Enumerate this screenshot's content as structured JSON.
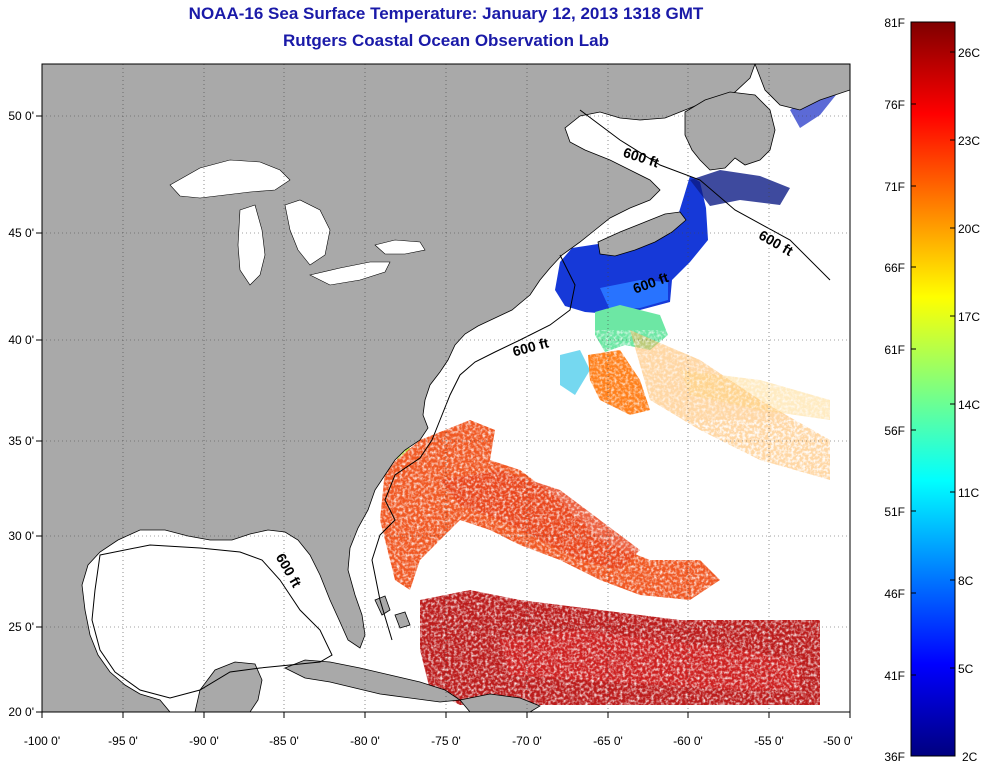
{
  "title": "NOAA-16 Sea Surface Temperature:  January 12, 2013 1318 GMT",
  "subtitle": "Rutgers Coastal Ocean Observation Lab",
  "colors": {
    "land": "#a9a9a9",
    "ocean": "#ffffff",
    "title_text": "#1a1aa8",
    "grid": "#333333",
    "colorbar_stops": [
      "#00007f",
      "#0000ff",
      "#007fff",
      "#00ffff",
      "#7fff7f",
      "#ffff00",
      "#ff7f00",
      "#ff0000",
      "#7f0000"
    ]
  },
  "map": {
    "lon_range": [
      -100,
      -50
    ],
    "lat_range": [
      20,
      52
    ],
    "lon_ticks": [
      "-100 0'",
      "-95 0'",
      "-90 0'",
      "-85 0'",
      "-80 0'",
      "-75 0'",
      "-70 0'",
      "-65 0'",
      "-60 0'",
      "-55 0'",
      "-50 0'"
    ],
    "lat_ticks": [
      "20 0'",
      "25 0'",
      "30 0'",
      "35 0'",
      "40 0'",
      "45 0'",
      "50 0'"
    ],
    "contour_labels": [
      "600 ft",
      "600 ft",
      "600 ft",
      "600 ft",
      "600 ft"
    ]
  },
  "colorbar": {
    "fahrenheit_labels": [
      "81F",
      "76F",
      "71F",
      "66F",
      "61F",
      "56F",
      "51F",
      "46F",
      "41F",
      "36F"
    ],
    "celsius_labels": [
      "26C",
      "23C",
      "20C",
      "17C",
      "14C",
      "11C",
      "8C",
      "5C",
      "2C"
    ]
  }
}
